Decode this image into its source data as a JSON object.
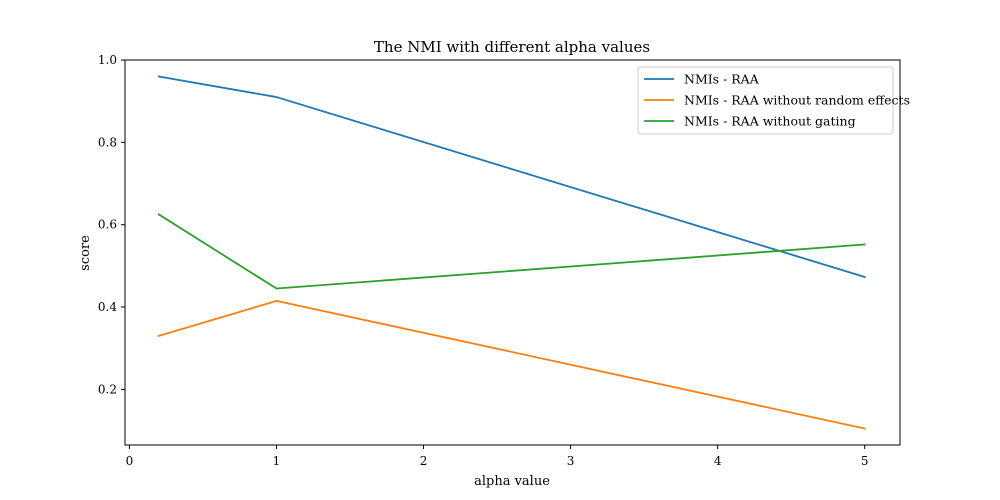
{
  "chart_data": {
    "type": "line",
    "title": "The NMI with different alpha values",
    "xlabel": "alpha value",
    "ylabel": "score",
    "x": [
      0.2,
      1,
      5
    ],
    "xlim": [
      -0.03,
      5.24
    ],
    "ylim": [
      0.065,
      1.0
    ],
    "xticks": [
      0,
      1,
      2,
      3,
      4,
      5
    ],
    "yticks": [
      0.2,
      0.4,
      0.6,
      0.8,
      1.0
    ],
    "xtick_labels": [
      "0",
      "1",
      "2",
      "3",
      "4",
      "5"
    ],
    "ytick_labels": [
      "0.2",
      "0.4",
      "0.6",
      "0.8",
      "1.0"
    ],
    "grid": false,
    "legend_position": "top-right",
    "series": [
      {
        "name": "NMIs - RAA",
        "color": "#1f77b4",
        "values": [
          0.96,
          0.91,
          0.473
        ]
      },
      {
        "name": "NMIs - RAA without random effects",
        "color": "#ff7f0e",
        "values": [
          0.33,
          0.415,
          0.105
        ]
      },
      {
        "name": "NMIs - RAA without gating",
        "color": "#2ca02c",
        "values": [
          0.625,
          0.445,
          0.552
        ]
      }
    ]
  }
}
